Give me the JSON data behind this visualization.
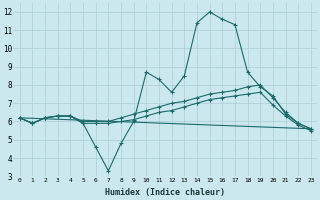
{
  "xlabel": "Humidex (Indice chaleur)",
  "xlim": [
    -0.5,
    23.5
  ],
  "ylim": [
    3,
    12.5
  ],
  "xticks": [
    0,
    1,
    2,
    3,
    4,
    5,
    6,
    7,
    8,
    9,
    10,
    11,
    12,
    13,
    14,
    15,
    16,
    17,
    18,
    19,
    20,
    21,
    22,
    23
  ],
  "yticks": [
    3,
    4,
    5,
    6,
    7,
    8,
    9,
    10,
    11,
    12
  ],
  "bg_color": "#cce8ef",
  "grid_color": "#aacdd6",
  "line_color": "#1a6b6b",
  "line1_x": [
    0,
    1,
    2,
    3,
    4,
    5,
    6,
    7,
    8,
    9,
    10,
    11,
    12,
    13,
    14,
    15,
    16,
    17,
    18,
    19,
    20,
    21,
    22,
    23
  ],
  "line1_y": [
    6.2,
    5.9,
    6.2,
    6.3,
    6.3,
    5.9,
    4.6,
    3.3,
    4.8,
    6.0,
    8.7,
    8.3,
    7.6,
    8.5,
    11.4,
    12.0,
    11.6,
    11.3,
    8.7,
    7.9,
    7.4,
    6.4,
    5.9,
    5.6
  ],
  "line2_x": [
    0,
    1,
    2,
    3,
    4,
    5,
    6,
    7,
    8,
    9,
    10,
    11,
    12,
    13,
    14,
    15,
    16,
    17,
    18,
    19,
    20,
    21,
    22,
    23
  ],
  "line2_y": [
    6.2,
    5.9,
    6.2,
    6.3,
    6.3,
    6.0,
    6.0,
    6.0,
    6.2,
    6.4,
    6.6,
    6.8,
    7.0,
    7.1,
    7.3,
    7.5,
    7.6,
    7.7,
    7.9,
    8.0,
    7.3,
    6.5,
    5.9,
    5.6
  ],
  "line3_x": [
    0,
    1,
    2,
    3,
    4,
    5,
    6,
    7,
    8,
    9,
    10,
    11,
    12,
    13,
    14,
    15,
    16,
    17,
    18,
    19,
    20,
    21,
    22,
    23
  ],
  "line3_y": [
    6.2,
    5.9,
    6.2,
    6.3,
    6.3,
    5.9,
    5.9,
    5.9,
    6.0,
    6.1,
    6.3,
    6.5,
    6.6,
    6.8,
    7.0,
    7.2,
    7.3,
    7.4,
    7.5,
    7.6,
    6.9,
    6.3,
    5.8,
    5.5
  ],
  "line4_x": [
    0,
    23
  ],
  "line4_y": [
    6.2,
    5.6
  ]
}
